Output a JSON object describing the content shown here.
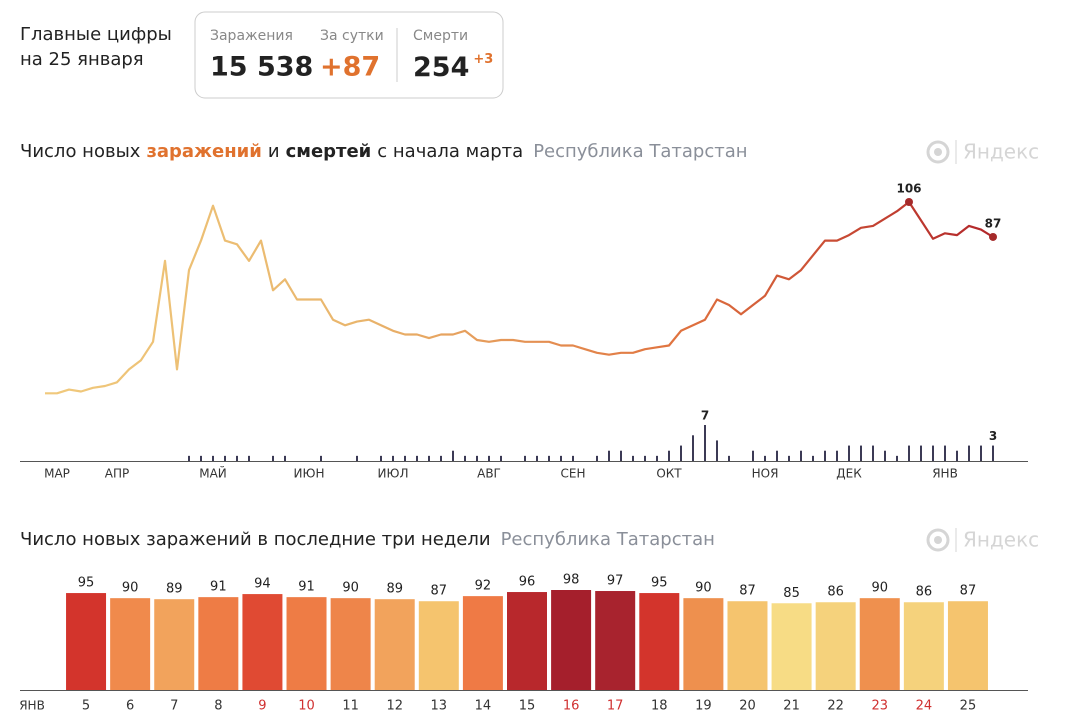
{
  "header": {
    "title": [
      "Главные цифры",
      "на 25 января"
    ],
    "stats": [
      {
        "label": "Заражения",
        "value": "15 538"
      },
      {
        "label": "За сутки",
        "value": "+87"
      },
      {
        "label": "Смерти",
        "value": "254",
        "delta": "+3"
      }
    ]
  },
  "chart_data": [
    {
      "type": "line",
      "title_prefix": "Число новых",
      "title_joiner": "и",
      "title_suffix": "с начала марта",
      "subtitle": "Республика Татарстан",
      "logo": "Яндекс",
      "categories": [
        null,
        "МАР",
        null,
        null,
        null,
        null,
        "АПР",
        null,
        null,
        null,
        null,
        null,
        null,
        null,
        "МАЙ",
        null,
        null,
        null,
        null,
        null,
        null,
        null,
        "ИЮН",
        null,
        null,
        null,
        null,
        null,
        null,
        "ИЮЛ",
        null,
        null,
        null,
        null,
        null,
        null,
        null,
        "АВГ",
        null,
        null,
        null,
        null,
        null,
        null,
        "СЕН",
        null,
        null,
        null,
        null,
        null,
        null,
        null,
        "ОКТ",
        null,
        null,
        null,
        null,
        null,
        null,
        null,
        "НОЯ",
        null,
        null,
        null,
        null,
        null,
        null,
        "ДЕК",
        null,
        null,
        null,
        null,
        null,
        null,
        null,
        "ЯНВ",
        null,
        null,
        null,
        null
      ],
      "series": [
        {
          "name": "заражений",
          "type": "line",
          "gradient": [
            "#f0c97c",
            "#e9b56c",
            "#e0733f",
            "#b2262a"
          ],
          "marker_color": "#a52a2a",
          "values": [
            2,
            2,
            4,
            3,
            5,
            6,
            8,
            15,
            20,
            30,
            74,
            15,
            69,
            85,
            104,
            85,
            83,
            74,
            85,
            58,
            64,
            53,
            53,
            53,
            42,
            39,
            41,
            42,
            39,
            36,
            34,
            34,
            32,
            34,
            34,
            36,
            31,
            30,
            31,
            31,
            30,
            30,
            30,
            28,
            28,
            26,
            24,
            23,
            24,
            24,
            26,
            27,
            28,
            36,
            39,
            42,
            53,
            50,
            45,
            50,
            55,
            66,
            64,
            69,
            77,
            85,
            85,
            88,
            92,
            93,
            97,
            101,
            106,
            96,
            86,
            89,
            88,
            93,
            91,
            87
          ]
        },
        {
          "name": "смертей",
          "type": "bar",
          "color": "#3c3a55",
          "values": [
            0,
            0,
            0,
            0,
            0,
            0,
            0,
            0,
            0,
            0,
            0,
            0,
            1,
            1,
            1,
            1,
            1,
            1,
            0,
            1,
            1,
            0,
            0,
            1,
            0,
            0,
            1,
            0,
            1,
            1,
            1,
            1,
            1,
            1,
            2,
            1,
            1,
            1,
            1,
            0,
            1,
            1,
            1,
            1,
            1,
            0,
            1,
            2,
            2,
            1,
            1,
            1,
            2,
            3,
            5,
            7,
            4,
            1,
            0,
            2,
            1,
            2,
            1,
            2,
            1,
            2,
            2,
            3,
            3,
            3,
            2,
            1,
            3,
            3,
            3,
            3,
            2,
            3,
            3,
            3
          ]
        }
      ]
    },
    {
      "type": "bar",
      "title": "Число новых заражений в последние три недели",
      "subtitle": "Республика Татарстан",
      "logo": "Яндекс",
      "month": "ЯНВ",
      "categories": [
        "5",
        "6",
        "7",
        "8",
        "9",
        "10",
        "11",
        "12",
        "13",
        "14",
        "15",
        "16",
        "17",
        "18",
        "19",
        "20",
        "21",
        "22",
        "23",
        "24",
        "25"
      ],
      "values": [
        95,
        90,
        89,
        91,
        94,
        91,
        90,
        89,
        87,
        92,
        96,
        98,
        97,
        95,
        90,
        87,
        85,
        86,
        90,
        86,
        87
      ],
      "colors": [
        "#d3342c",
        "#f08a4c",
        "#f2a35c",
        "#ee7c45",
        "#e04a33",
        "#ee7c45",
        "#ee854a",
        "#f2a35c",
        "#f5c46e",
        "#ef7a45",
        "#b8282c",
        "#a51f2c",
        "#a8232e",
        "#d3342c",
        "#ee904e",
        "#f5c46e",
        "#f7dc85",
        "#f5d27c",
        "#ef904e",
        "#f5d27c",
        "#f5c46e"
      ],
      "category_colors": [
        "#333",
        "#333",
        "#333",
        "#333",
        "#d03030",
        "#d03030",
        "#333",
        "#333",
        "#333",
        "#333",
        "#333",
        "#d03030",
        "#d03030",
        "#333",
        "#333",
        "#333",
        "#333",
        "#333",
        "#d03030",
        "#d03030",
        "#333"
      ]
    }
  ]
}
